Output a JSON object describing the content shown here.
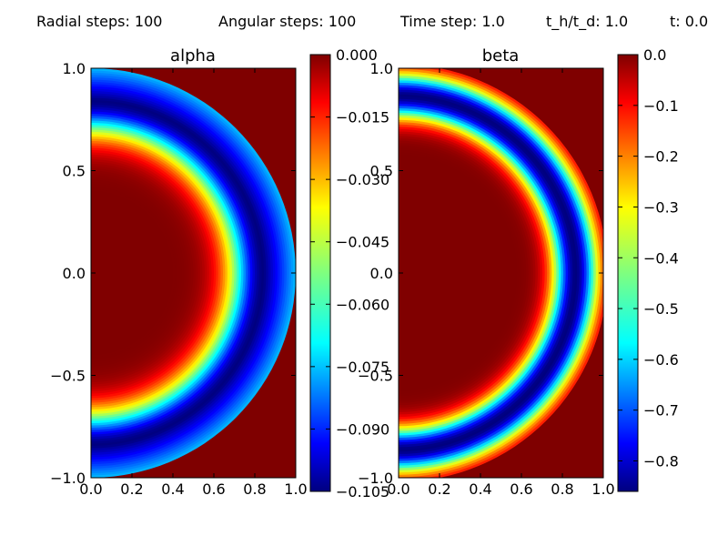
{
  "header": {
    "radial_steps": "Radial steps: 100",
    "angular_steps": "Angular steps: 100",
    "time_step": "Time step: 1.0",
    "th_td": "t_h/t_d: 1.0",
    "time": "t: 0.0"
  },
  "chart_data": [
    {
      "type": "heatmap",
      "title": "alpha",
      "xlabel": "",
      "ylabel": "",
      "xlim": [
        0.0,
        1.0
      ],
      "ylim": [
        -1.0,
        1.0
      ],
      "x_ticks": [
        "0.0",
        "0.2",
        "0.4",
        "0.6",
        "0.8",
        "1.0"
      ],
      "y_ticks": [
        "1.0",
        "0.5",
        "0.0",
        "−0.5",
        "−1.0"
      ],
      "colorbar": {
        "colormap": "jet",
        "min": -0.105,
        "max": 0.0,
        "ticks": [
          "0.000",
          "−0.015",
          "−0.030",
          "−0.045",
          "−0.060",
          "−0.075",
          "−0.090",
          "−0.105"
        ]
      },
      "field": {
        "shape": "half-annulus",
        "radius_peak": 0.85,
        "peak_value": -0.105,
        "background_value": 0.0
      }
    },
    {
      "type": "heatmap",
      "title": "beta",
      "xlabel": "",
      "ylabel": "",
      "xlim": [
        0.0,
        1.0
      ],
      "ylim": [
        -1.0,
        1.0
      ],
      "x_ticks": [
        "0.0",
        "0.2",
        "0.4",
        "0.6",
        "0.8",
        "1.0"
      ],
      "y_ticks": [
        "1.0",
        "0.5",
        "0.0",
        "−0.5",
        "−1.0"
      ],
      "colorbar": {
        "colormap": "jet",
        "min": -0.86,
        "max": 0.0,
        "ticks": [
          "0.0",
          "−0.1",
          "−0.2",
          "−0.3",
          "−0.4",
          "−0.5",
          "−0.6",
          "−0.7",
          "−0.8"
        ]
      },
      "field": {
        "shape": "half-annulus",
        "radius_peak": 0.87,
        "peak_value": -0.86,
        "background_value": 0.0
      }
    }
  ]
}
